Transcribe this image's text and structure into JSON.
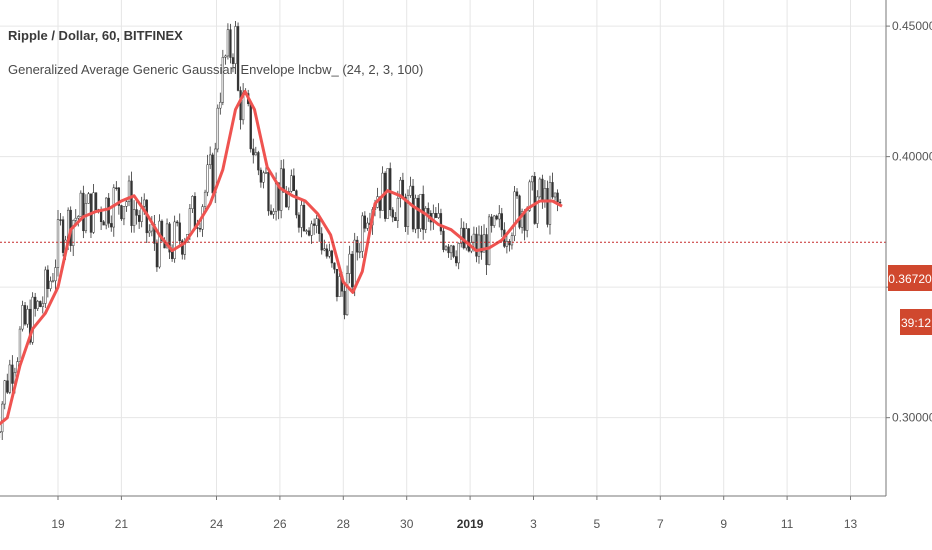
{
  "title": "Ripple / Dollar, 60, BITFINEX",
  "indicator": "Generalized Average Generic Gaussian Envelope lncbw_ (24, 2, 3, 100)",
  "price_label": "0.36720",
  "countdown_label": "39:12",
  "colors": {
    "ma_line": "#ef5350",
    "price_line": "#c62828",
    "price_badge": "#d0482e",
    "candle": "#333333",
    "grid": "#e6e6e6"
  },
  "chart_data": {
    "type": "line",
    "title": "Ripple / Dollar, 60, BITFINEX",
    "y_ticks": [
      "0.45000",
      "0.40000",
      "0.30000"
    ],
    "x_ticks": [
      "19",
      "21",
      "24",
      "26",
      "28",
      "30",
      "2019",
      "3",
      "5",
      "7",
      "9",
      "11",
      "13"
    ],
    "ylim": [
      0.27,
      0.46
    ],
    "current_price": 0.3672,
    "series": [
      {
        "name": "Generalized Average Generic Gaussian Envelope lncbw_",
        "x": [
          17.0,
          17.4,
          17.8,
          18.2,
          18.6,
          19.0,
          19.4,
          19.8,
          20.2,
          20.6,
          21.0,
          21.4,
          21.8,
          22.2,
          22.6,
          23.0,
          23.4,
          23.8,
          24.2,
          24.6,
          24.9,
          25.2,
          25.6,
          26.0,
          26.4,
          26.8,
          27.2,
          27.6,
          28.0,
          28.3,
          28.6,
          29.0,
          29.4,
          29.8,
          30.2,
          30.6,
          31.0,
          31.4,
          31.8,
          32.2,
          32.6,
          33.0,
          33.4,
          33.8,
          34.2,
          34.6,
          34.9
        ],
        "y": [
          0.296,
          0.3,
          0.32,
          0.334,
          0.34,
          0.35,
          0.372,
          0.377,
          0.379,
          0.38,
          0.383,
          0.385,
          0.378,
          0.37,
          0.364,
          0.367,
          0.374,
          0.382,
          0.395,
          0.418,
          0.425,
          0.418,
          0.396,
          0.388,
          0.385,
          0.383,
          0.378,
          0.37,
          0.352,
          0.348,
          0.356,
          0.382,
          0.387,
          0.385,
          0.381,
          0.378,
          0.374,
          0.372,
          0.368,
          0.364,
          0.365,
          0.368,
          0.374,
          0.38,
          0.383,
          0.383,
          0.381
        ]
      }
    ],
    "grid": true
  }
}
